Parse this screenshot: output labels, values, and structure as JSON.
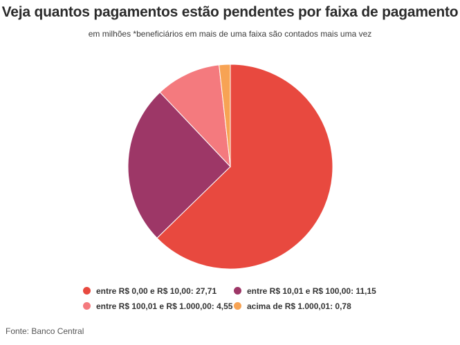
{
  "chart_data": {
    "type": "pie",
    "title": "Veja quantos pagamentos estão pendentes por faixa de pagamento",
    "subtitle": "em milhões *beneficiários em mais de uma faixa são contados mais uma vez",
    "slices": [
      {
        "label": "entre R$ 0,00 e R$ 10,00: 27,71",
        "value": 27.71,
        "color": "#e8493f"
      },
      {
        "label": "entre R$ 10,01 e R$ 100,00: 11,15",
        "value": 11.15,
        "color": "#9d3767"
      },
      {
        "label": "entre R$ 100,01 e R$ 1.000,00: 4,55",
        "value": 4.55,
        "color": "#f47a7e"
      },
      {
        "label": "acima de R$ 1.000,01: 0,78",
        "value": 0.78,
        "color": "#f7a354"
      }
    ],
    "start_angle": "12 o'clock",
    "direction": "clockwise",
    "legend_position": "bottom"
  },
  "source": "Fonte: Banco Central"
}
